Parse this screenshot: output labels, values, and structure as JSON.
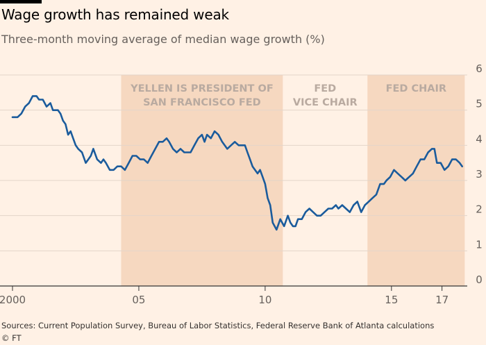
{
  "header": {
    "title": "Wage growth has remained weak",
    "subtitle": "Three-month moving average of median wage growth (%)"
  },
  "footer": {
    "source": "Sources: Current Population Survey, Bureau of Labor Statistics, Federal Reserve Bank of Atlanta calculations",
    "credit": "© FT"
  },
  "colors": {
    "background": "#fff1e5",
    "line": "#1a5b9c",
    "shade": "#f6d8c0",
    "grid": "#e3d5c9",
    "band_text": "#b9aaa0"
  },
  "chart_data": {
    "type": "line",
    "title": "Wage growth has remained weak",
    "subtitle": "Three-month moving average of median wage growth (%)",
    "x_ticks": [
      {
        "x": 2000,
        "label": "2000"
      },
      {
        "x": 2005,
        "label": "05"
      },
      {
        "x": 2010,
        "label": "10"
      },
      {
        "x": 2015,
        "label": "15"
      },
      {
        "x": 2017,
        "label": "17"
      }
    ],
    "y_ticks": [
      "0",
      "1",
      "2",
      "3",
      "4",
      "5",
      "6"
    ],
    "xlim": [
      2000,
      2018
    ],
    "ylim": [
      0,
      6
    ],
    "grid": true,
    "y_axis_side": "right",
    "bands": [
      {
        "start": 2004.3,
        "end": 2010.7,
        "label": [
          "YELLEN IS PRESIDENT OF",
          "SAN FRANCISCO FED"
        ],
        "shaded": true
      },
      {
        "start": 2010.7,
        "end": 2014.05,
        "label": [
          "FED",
          "VICE CHAIR"
        ],
        "shaded": false
      },
      {
        "start": 2014.05,
        "end": 2017.9,
        "label": [
          "FED CHAIR"
        ],
        "shaded": true
      }
    ],
    "series": [
      {
        "x": [
          2000.0,
          2000.2,
          2000.35,
          2000.5,
          2000.65,
          2000.8,
          2000.95,
          2001.05,
          2001.2,
          2001.35,
          2001.5,
          2001.6,
          2001.7,
          2001.8,
          2001.9,
          2002.0,
          2002.1,
          2002.2,
          2002.3,
          2002.4,
          2002.5,
          2002.6,
          2002.75,
          2002.9,
          2003.0,
          2003.1,
          2003.2,
          2003.35,
          2003.5,
          2003.6,
          2003.7,
          2003.85,
          2004.0,
          2004.15,
          2004.3,
          2004.45,
          2004.6,
          2004.75,
          2004.9,
          2005.05,
          2005.2,
          2005.35,
          2005.5,
          2005.65,
          2005.8,
          2005.95,
          2006.1,
          2006.2,
          2006.35,
          2006.5,
          2006.65,
          2006.8,
          2006.95,
          2007.05,
          2007.2,
          2007.35,
          2007.5,
          2007.6,
          2007.7,
          2007.85,
          2008.0,
          2008.15,
          2008.3,
          2008.5,
          2008.65,
          2008.8,
          2008.95,
          2009.1,
          2009.2,
          2009.3,
          2009.4,
          2009.5,
          2009.6,
          2009.7,
          2009.8,
          2009.9,
          2010.0,
          2010.1,
          2010.2,
          2010.3,
          2010.45,
          2010.6,
          2010.75,
          2010.9,
          2011.0,
          2011.1,
          2011.2,
          2011.3,
          2011.45,
          2011.6,
          2011.75,
          2011.9,
          2012.05,
          2012.2,
          2012.35,
          2012.5,
          2012.65,
          2012.8,
          2012.9,
          2013.05,
          2013.2,
          2013.35,
          2013.5,
          2013.65,
          2013.8,
          2013.95,
          2014.1,
          2014.25,
          2014.4,
          2014.55,
          2014.7,
          2014.8,
          2014.95,
          2015.1,
          2015.25,
          2015.4,
          2015.55,
          2015.7,
          2015.85,
          2016.0,
          2016.15,
          2016.3,
          2016.45,
          2016.6,
          2016.7,
          2016.8,
          2016.95,
          2017.1,
          2017.25,
          2017.4,
          2017.55,
          2017.7,
          2017.8
        ],
        "y": [
          4.8,
          4.8,
          4.9,
          5.1,
          5.2,
          5.4,
          5.4,
          5.3,
          5.3,
          5.1,
          5.2,
          5.0,
          5.0,
          5.0,
          4.9,
          4.7,
          4.6,
          4.3,
          4.4,
          4.2,
          4.0,
          3.9,
          3.8,
          3.5,
          3.6,
          3.7,
          3.9,
          3.6,
          3.5,
          3.6,
          3.5,
          3.3,
          3.3,
          3.4,
          3.4,
          3.3,
          3.5,
          3.7,
          3.7,
          3.6,
          3.6,
          3.5,
          3.7,
          3.9,
          4.1,
          4.1,
          4.2,
          4.1,
          3.9,
          3.8,
          3.9,
          3.8,
          3.8,
          3.8,
          4.0,
          4.2,
          4.3,
          4.1,
          4.3,
          4.2,
          4.4,
          4.3,
          4.1,
          3.9,
          4.0,
          4.1,
          4.0,
          4.0,
          4.0,
          3.8,
          3.6,
          3.4,
          3.3,
          3.2,
          3.3,
          3.1,
          2.9,
          2.5,
          2.3,
          1.8,
          1.6,
          1.9,
          1.7,
          2.0,
          1.8,
          1.7,
          1.7,
          1.9,
          1.9,
          2.1,
          2.2,
          2.1,
          2.0,
          2.0,
          2.1,
          2.2,
          2.2,
          2.3,
          2.2,
          2.3,
          2.2,
          2.1,
          2.3,
          2.4,
          2.1,
          2.3,
          2.4,
          2.5,
          2.6,
          2.9,
          2.9,
          3.0,
          3.1,
          3.3,
          3.2,
          3.1,
          3.0,
          3.1,
          3.2,
          3.4,
          3.6,
          3.6,
          3.8,
          3.9,
          3.9,
          3.5,
          3.5,
          3.3,
          3.4,
          3.6,
          3.6,
          3.5,
          3.4
        ]
      }
    ]
  }
}
